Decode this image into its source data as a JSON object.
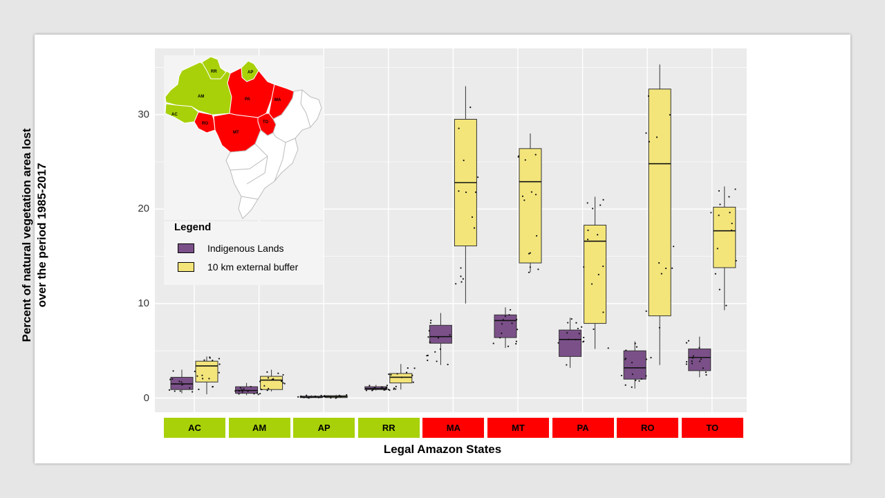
{
  "chart_data": {
    "type": "boxplot",
    "xlabel": "Legal Amazon States",
    "ylabel_line1": "Percent of natural vegetation area lost",
    "ylabel_line2": "over the period 1985-2017",
    "ylim": [
      -1.5,
      37
    ],
    "yticks": [
      "0",
      "10",
      "20",
      "30"
    ],
    "colors": {
      "panel": "#ebebeb",
      "grid": "#ffffff",
      "indigenous": "#7b5089",
      "buffer": "#f3e57a",
      "state_green": "#a8d10a",
      "state_red": "#ff0000"
    },
    "legend": {
      "title": "Legend",
      "items": [
        {
          "label": "Indigenous Lands",
          "color": "#7b5089"
        },
        {
          "label": "10 km external buffer",
          "color": "#f3e57a"
        }
      ]
    },
    "categories": [
      {
        "label": "AC",
        "group": "green"
      },
      {
        "label": "AM",
        "group": "green"
      },
      {
        "label": "AP",
        "group": "green"
      },
      {
        "label": "RR",
        "group": "green"
      },
      {
        "label": "MA",
        "group": "red"
      },
      {
        "label": "MT",
        "group": "red"
      },
      {
        "label": "PA",
        "group": "red"
      },
      {
        "label": "RO",
        "group": "red"
      },
      {
        "label": "TO",
        "group": "red"
      }
    ],
    "series": [
      {
        "name": "Indigenous Lands",
        "boxes": [
          {
            "min": 0.5,
            "q1": 0.9,
            "median": 1.5,
            "q3": 2.2,
            "max": 3.0
          },
          {
            "min": 0.3,
            "q1": 0.5,
            "median": 0.8,
            "q3": 1.2,
            "max": 1.6
          },
          {
            "min": 0.0,
            "q1": 0.05,
            "median": 0.1,
            "q3": 0.2,
            "max": 0.3
          },
          {
            "min": 0.8,
            "q1": 0.9,
            "median": 1.0,
            "q3": 1.2,
            "max": 1.4
          },
          {
            "min": 3.5,
            "q1": 5.8,
            "median": 6.5,
            "q3": 7.7,
            "max": 9.0
          },
          {
            "min": 5.3,
            "q1": 6.4,
            "median": 8.2,
            "q3": 8.8,
            "max": 9.6
          },
          {
            "min": 3.2,
            "q1": 4.4,
            "median": 6.2,
            "q3": 7.2,
            "max": 8.5
          },
          {
            "min": 1.0,
            "q1": 2.0,
            "median": 3.2,
            "q3": 5.0,
            "max": 6.0
          },
          {
            "min": 2.2,
            "q1": 2.9,
            "median": 4.3,
            "q3": 5.2,
            "max": 6.5
          }
        ]
      },
      {
        "name": "10 km external buffer",
        "boxes": [
          {
            "min": 0.4,
            "q1": 1.7,
            "median": 3.4,
            "q3": 3.9,
            "max": 4.4
          },
          {
            "min": 0.7,
            "q1": 0.9,
            "median": 1.9,
            "q3": 2.3,
            "max": 3.0
          },
          {
            "min": 0.0,
            "q1": 0.05,
            "median": 0.15,
            "q3": 0.25,
            "max": 0.35
          },
          {
            "min": 0.9,
            "q1": 1.6,
            "median": 2.2,
            "q3": 2.6,
            "max": 3.6
          },
          {
            "min": 10.0,
            "q1": 16.1,
            "median": 22.8,
            "q3": 29.5,
            "max": 33.0
          },
          {
            "min": 13.3,
            "q1": 14.3,
            "median": 22.9,
            "q3": 26.4,
            "max": 28.0
          },
          {
            "min": 5.2,
            "q1": 7.9,
            "median": 16.6,
            "q3": 18.3,
            "max": 21.3
          },
          {
            "min": 3.5,
            "q1": 8.7,
            "median": 24.8,
            "q3": 32.7,
            "max": 35.3
          },
          {
            "min": 9.3,
            "q1": 13.8,
            "median": 17.7,
            "q3": 20.2,
            "max": 22.4
          }
        ]
      }
    ]
  },
  "map": {
    "labels": [
      "RR",
      "AP",
      "AM",
      "PA",
      "MA",
      "AC",
      "RO",
      "TO",
      "MT"
    ],
    "colors": {
      "green": "#a8d10a",
      "red": "#ff0000",
      "other": "#ffffff"
    }
  }
}
